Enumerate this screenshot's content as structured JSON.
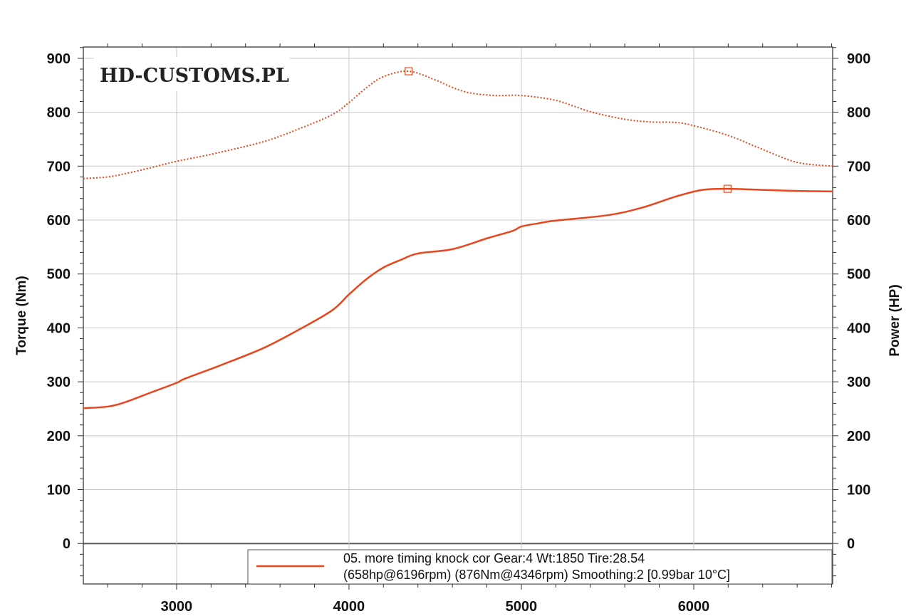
{
  "chart_data": {
    "type": "line",
    "watermark": "HD-CUSTOMS.PL",
    "xlabel": "",
    "ylabel_left": "Torque (Nm)",
    "ylabel_right": "Power (HP)",
    "xlim": [
      2459,
      6806
    ],
    "ylim": [
      -75,
      921
    ],
    "x_ticks": [
      "3000",
      "4000",
      "5000",
      "6000"
    ],
    "y_ticks": [
      "0",
      "100",
      "200",
      "300",
      "400",
      "500",
      "600",
      "700",
      "800",
      "900"
    ],
    "grid": true,
    "line_color": "#e8461e",
    "series": [
      {
        "name": "Power (HP)",
        "style": "solid",
        "x": [
          2459,
          2600,
          2700,
          2850,
          3000,
          3050,
          3250,
          3500,
          3700,
          3900,
          4000,
          4100,
          4200,
          4300,
          4400,
          4600,
          4800,
          4950,
          5000,
          5100,
          5200,
          5500,
          5700,
          5900,
          6050,
          6196,
          6400,
          6600,
          6806
        ],
        "y": [
          251,
          254,
          262,
          280,
          298,
          306,
          330,
          362,
          395,
          432,
          462,
          490,
          512,
          526,
          538,
          546,
          566,
          580,
          588,
          594,
          599,
          609,
          623,
          644,
          656,
          658,
          656,
          654,
          653
        ]
      },
      {
        "name": "Torque (Nm)",
        "style": "dotted",
        "x": [
          2459,
          2600,
          2700,
          2850,
          3000,
          3200,
          3500,
          3700,
          3900,
          4000,
          4100,
          4200,
          4346,
          4500,
          4600,
          4700,
          4850,
          5000,
          5200,
          5400,
          5600,
          5750,
          5900,
          6000,
          6200,
          6400,
          6600,
          6806
        ],
        "y": [
          677,
          680,
          686,
          697,
          709,
          722,
          745,
          768,
          795,
          818,
          845,
          866,
          876,
          860,
          846,
          836,
          831,
          831,
          822,
          801,
          787,
          782,
          781,
          775,
          757,
          731,
          707,
          700
        ]
      }
    ],
    "markers": [
      {
        "series": "Torque (Nm)",
        "x": 4346,
        "y": 876
      },
      {
        "series": "Power (HP)",
        "x": 6196,
        "y": 658
      }
    ],
    "legend": {
      "placement": "bottom-right",
      "line1": "05. more timing knock cor Gear:4 Wt:1850 Tire:28.54",
      "line2": "(658hp@6196rpm) (876Nm@4346rpm) Smoothing:2 [0.99bar 10°C]"
    }
  }
}
